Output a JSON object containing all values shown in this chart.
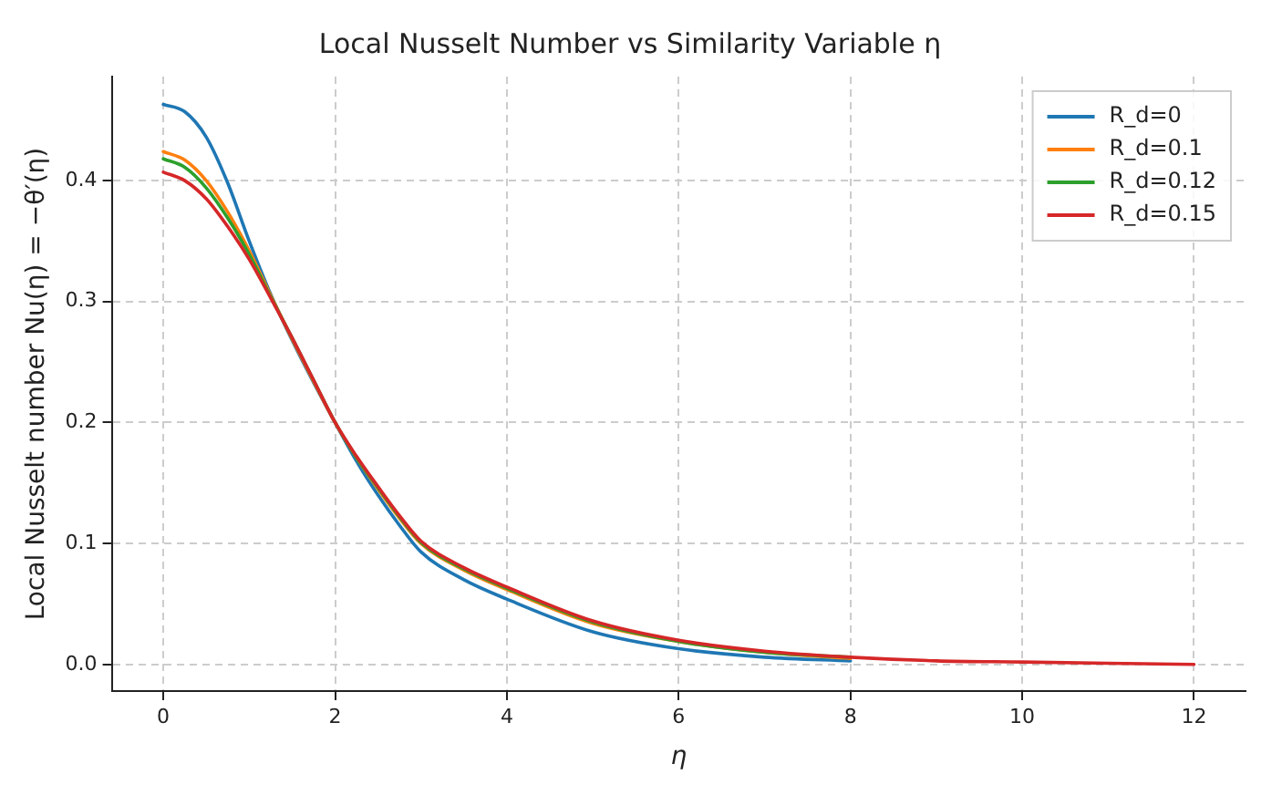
{
  "chart_data": {
    "type": "line",
    "title": "Local Nusselt Number vs Similarity Variable η",
    "xlabel": "η",
    "ylabel": "Local Nusselt number Nu(η) = −θ′(η)",
    "x": [
      0,
      0.25,
      0.5,
      0.75,
      1,
      1.25,
      1.5,
      1.75,
      2,
      2.25,
      2.5,
      2.75,
      3,
      3.5,
      4,
      5,
      6,
      7,
      8
    ],
    "series": [
      {
        "name": "R_d=0",
        "color": "#1f77b4",
        "values": [
          0.463,
          0.457,
          0.436,
          0.398,
          0.35,
          0.306,
          0.268,
          0.233,
          0.2,
          0.168,
          0.14,
          0.115,
          0.093,
          0.07,
          0.054,
          0.027,
          0.013,
          0.006,
          0.003
        ]
      },
      {
        "name": "R_d=0.1",
        "color": "#ff7f0e",
        "values": [
          0.424,
          0.417,
          0.4,
          0.374,
          0.342,
          0.305,
          0.269,
          0.234,
          0.2,
          0.171,
          0.145,
          0.121,
          0.1,
          0.078,
          0.062,
          0.034,
          0.019,
          0.01,
          0.005
        ]
      },
      {
        "name": "R_d=0.12",
        "color": "#2ca02c",
        "values": [
          0.418,
          0.411,
          0.394,
          0.369,
          0.339,
          0.304,
          0.27,
          0.235,
          0.2,
          0.171,
          0.146,
          0.122,
          0.101,
          0.079,
          0.063,
          0.035,
          0.019,
          0.01,
          0.006
        ]
      },
      {
        "name": "R_d=0.15",
        "color": "#d62728",
        "x": [
          0,
          0.25,
          0.5,
          0.75,
          1,
          1.25,
          1.5,
          1.75,
          2,
          2.25,
          2.5,
          2.75,
          3,
          3.5,
          4,
          5,
          6,
          7,
          8,
          9,
          10,
          11,
          12
        ],
        "values": [
          0.407,
          0.4,
          0.385,
          0.362,
          0.335,
          0.303,
          0.27,
          0.235,
          0.2,
          0.172,
          0.147,
          0.123,
          0.102,
          0.08,
          0.064,
          0.036,
          0.02,
          0.011,
          0.006,
          0.003,
          0.002,
          0.001,
          0
        ]
      }
    ],
    "xlim": [
      -0.6,
      12.6
    ],
    "xticks": [
      0,
      2,
      4,
      6,
      8,
      10,
      12
    ],
    "ylim": [
      -0.022,
      0.486
    ],
    "yticks": [
      {
        "value": 0,
        "label": "0.0"
      },
      {
        "value": 0.1,
        "label": "0.1"
      },
      {
        "value": 0.2,
        "label": "0.2"
      },
      {
        "value": 0.3,
        "label": "0.3"
      },
      {
        "value": 0.4,
        "label": "0.4"
      }
    ],
    "grid": true,
    "legend": "top right",
    "marker": "none",
    "line_style": "solid"
  }
}
